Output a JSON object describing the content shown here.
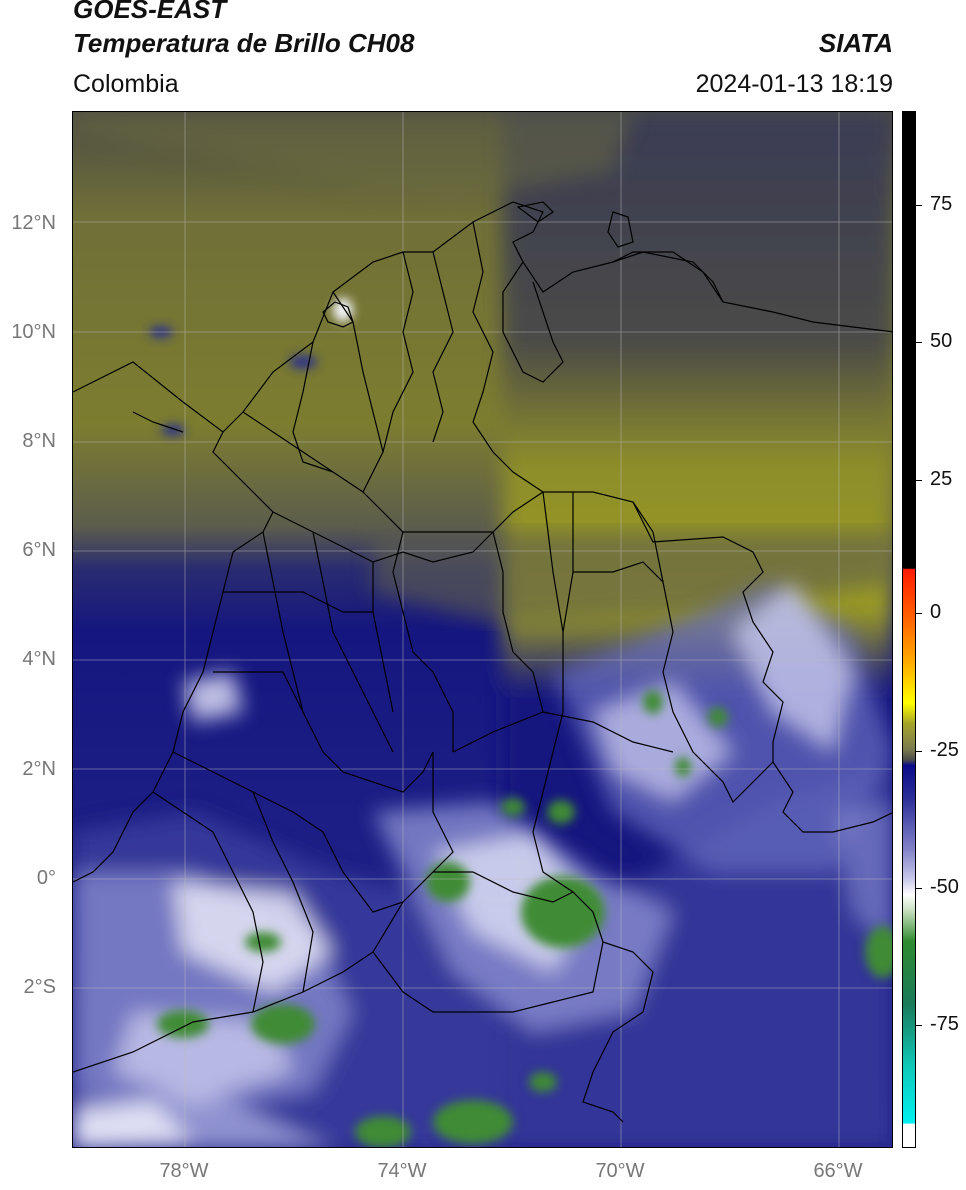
{
  "header": {
    "title_line1": "GOES-EAST",
    "title_line2": "Temperatura de Brillo CH08",
    "source": "SIATA",
    "region": "Colombia",
    "datetime": "2024-01-13 18:19"
  },
  "axes": {
    "lat_ticks": [
      "12°N",
      "10°N",
      "8°N",
      "6°N",
      "4°N",
      "2°N",
      "0°",
      "2°S"
    ],
    "lon_ticks": [
      "78°W",
      "74°W",
      "70°W",
      "66°W"
    ]
  },
  "colorbar": {
    "ticks": [
      "75",
      "50",
      "25",
      "0",
      "-25",
      "-50",
      "-75"
    ],
    "colors": {
      "warm_black": "#000000",
      "red": "#ff1a00",
      "orange": "#ff9900",
      "yellow": "#ffff00",
      "olive": "#a4a328",
      "gray": "#4a4a4a",
      "navy": "#0c0c8a",
      "lavender": "#c9c9ea",
      "white": "#ffffff",
      "green": "#2e8b2e",
      "teal": "#10c8b8",
      "cyan": "#00f0f0"
    }
  },
  "map_colors": {
    "olive": "#8e8e2a",
    "dark_olive": "#5f5f40",
    "gray_navy": "#3f4258",
    "navy": "#15167f",
    "cloud_blue": "#4a4ea8",
    "cloud_light": "#c6c8ec",
    "cloud_white": "#f4f4fb",
    "cold_green": "#3f8b35",
    "borders": "#000000",
    "gridlines": "#bbbbbb"
  }
}
